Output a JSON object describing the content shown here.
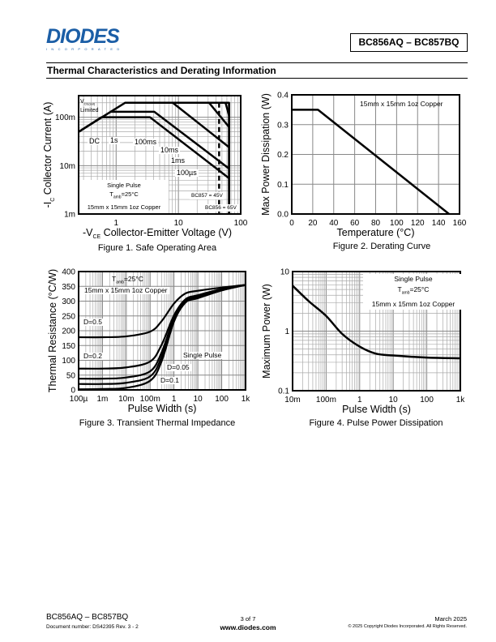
{
  "header": {
    "logo_text": "DIODES",
    "logo_sub": "INCORPORATED",
    "part_number": "BC856AQ – BC857BQ",
    "brand_color": "#1b5ea6"
  },
  "section_title": "Thermal Characteristics and Derating Information",
  "chart_data": [
    {
      "type": "line",
      "title": "Figure 1. Safe Operating Area",
      "xlabel_prefix": "-V",
      "xlabel_sub": "CE",
      "xlabel": "Collector-Emitter Voltage (V)",
      "ylabel_prefix": "-I",
      "ylabel_sub": "C",
      "ylabel": "Collector Current (A)",
      "xscale": "log",
      "yscale": "log",
      "xlim": [
        0.25,
        100
      ],
      "ylim": [
        0.001,
        0.28
      ],
      "grid": true,
      "xticks": [
        {
          "v": 1,
          "label": "1"
        },
        {
          "v": 10,
          "label": "10"
        },
        {
          "v": 100,
          "label": "100"
        }
      ],
      "yticks": [
        {
          "v": 0.001,
          "label": "1m"
        },
        {
          "v": 0.01,
          "label": "10m"
        },
        {
          "v": 0.1,
          "label": "100m"
        }
      ],
      "series": [
        {
          "name": "DC",
          "points": [
            [
              0.25,
              0.05
            ],
            [
              0.58,
              0.1
            ],
            [
              3.5,
              0.1
            ],
            [
              65,
              0.0055
            ]
          ]
        },
        {
          "name": "1s",
          "points": [
            [
              0.79,
              0.13
            ],
            [
              4.1,
              0.13
            ],
            [
              65,
              0.0087
            ]
          ]
        },
        {
          "name": "100ms",
          "points": [
            [
              1.4,
              0.2
            ],
            [
              8.1,
              0.2
            ],
            [
              65,
              0.024
            ]
          ]
        },
        {
          "name": "10ms",
          "points": [
            [
              31,
              0.2
            ],
            [
              65,
              0.063
            ]
          ]
        },
        {
          "name": "1ms",
          "points": [
            [
              57,
              0.2
            ],
            [
              65,
              0.108
            ]
          ]
        },
        {
          "name": "100µs",
          "points": [
            [
              0.25,
              0.05
            ],
            [
              1.4,
              0.2
            ],
            [
              65,
              0.2
            ],
            [
              65,
              0.001
            ]
          ]
        }
      ],
      "limits": [
        {
          "label": "BC857 = 45V",
          "v": 45,
          "style": "dashed"
        },
        {
          "label": "BC856 = 65V",
          "v": 65,
          "style": "solid"
        }
      ],
      "annotations": {
        "vce_sat": "V",
        "vce_sat_sub": "CE(sat)",
        "limited": "Limited",
        "dc": "DC",
        "s1": "1s",
        "ms100": "100ms",
        "ms10": "10ms",
        "ms1": "1ms",
        "us100": "100µs",
        "single_pulse": "Single Pulse",
        "tamb": "T",
        "tamb_sub": "amb",
        "tamb_val": "=25°C",
        "copper": "15mm x 15mm 1oz Copper"
      }
    },
    {
      "type": "line",
      "title": "Figure 2. Derating Curve",
      "xlabel": "Temperature (°C)",
      "ylabel": "Max Power Dissipation (W)",
      "xscale": "linear",
      "yscale": "linear",
      "xlim": [
        0,
        160
      ],
      "ylim": [
        0,
        0.4
      ],
      "grid": true,
      "xticks": [
        {
          "v": 0,
          "label": "0"
        },
        {
          "v": 20,
          "label": "20"
        },
        {
          "v": 40,
          "label": "40"
        },
        {
          "v": 60,
          "label": "60"
        },
        {
          "v": 80,
          "label": "80"
        },
        {
          "v": 100,
          "label": "100"
        },
        {
          "v": 120,
          "label": "120"
        },
        {
          "v": 140,
          "label": "140"
        },
        {
          "v": 160,
          "label": "160"
        }
      ],
      "yticks": [
        {
          "v": 0,
          "label": "0.0"
        },
        {
          "v": 0.1,
          "label": "0.1"
        },
        {
          "v": 0.2,
          "label": "0.2"
        },
        {
          "v": 0.3,
          "label": "0.3"
        },
        {
          "v": 0.4,
          "label": "0.4"
        }
      ],
      "series": [
        {
          "name": "Pd",
          "points": [
            [
              0,
              0.35
            ],
            [
              25,
              0.35
            ],
            [
              150,
              0
            ]
          ]
        }
      ],
      "annotations": {
        "copper": "15mm x 15mm 1oz Copper"
      }
    },
    {
      "type": "line",
      "title": "Figure 3. Transient Thermal Impedance",
      "xlabel": "Pulse Width (s)",
      "ylabel": "Thermal Resistance (°C/W)",
      "xscale": "log",
      "yscale": "linear",
      "xlim": [
        0.0001,
        1000
      ],
      "ylim": [
        0,
        400
      ],
      "grid": true,
      "xticks": [
        {
          "v": 0.0001,
          "label": "100µ"
        },
        {
          "v": 0.001,
          "label": "1m"
        },
        {
          "v": 0.01,
          "label": "10m"
        },
        {
          "v": 0.1,
          "label": "100m"
        },
        {
          "v": 1,
          "label": "1"
        },
        {
          "v": 10,
          "label": "10"
        },
        {
          "v": 100,
          "label": "100"
        },
        {
          "v": 1000,
          "label": "1k"
        }
      ],
      "yticks": [
        {
          "v": 0,
          "label": "0"
        },
        {
          "v": 50,
          "label": "50"
        },
        {
          "v": 100,
          "label": "100"
        },
        {
          "v": 150,
          "label": "150"
        },
        {
          "v": 200,
          "label": "200"
        },
        {
          "v": 250,
          "label": "250"
        },
        {
          "v": 300,
          "label": "300"
        },
        {
          "v": 350,
          "label": "350"
        },
        {
          "v": 400,
          "label": "400"
        }
      ],
      "x": [
        0.0001,
        0.001,
        0.01,
        0.1,
        0.3,
        1,
        3,
        10,
        100,
        1000
      ],
      "series": [
        {
          "name": "D=0.5",
          "values": [
            178,
            178,
            181,
            197,
            232,
            292,
            326,
            335,
            346,
            355
          ]
        },
        {
          "name": "D=0.2",
          "values": [
            72,
            72,
            76,
            96,
            152,
            252,
            306,
            320,
            341,
            355
          ]
        },
        {
          "name": "D=0.1",
          "values": [
            38,
            38,
            42,
            63,
            126,
            242,
            301,
            315,
            338,
            355
          ]
        },
        {
          "name": "D=0.05",
          "values": [
            20,
            20,
            24,
            46,
            111,
            237,
            298,
            312,
            337,
            355
          ]
        },
        {
          "name": "Single Pulse",
          "values": [
            2,
            3,
            7,
            31,
            96,
            231,
            295,
            310,
            336,
            355
          ]
        }
      ],
      "annotations": {
        "tamb": "T",
        "tamb_sub": "amb",
        "tamb_val": "=25°C",
        "copper": "15mm x 15mm 1oz Copper",
        "d05": "D=0.5",
        "d02": "D=0.2",
        "single": "Single Pulse",
        "d005": "D=0.05",
        "d01": "D=0.1"
      }
    },
    {
      "type": "line",
      "title": "Figure 4. Pulse Power Dissipation",
      "xlabel": "Pulse Width (s)",
      "ylabel": "Maximum Power (W)",
      "xscale": "log",
      "yscale": "log",
      "xlim": [
        0.01,
        1000
      ],
      "ylim": [
        0.1,
        10
      ],
      "grid": true,
      "xticks": [
        {
          "v": 0.01,
          "label": "10m"
        },
        {
          "v": 0.1,
          "label": "100m"
        },
        {
          "v": 1,
          "label": "1"
        },
        {
          "v": 10,
          "label": "10"
        },
        {
          "v": 100,
          "label": "100"
        },
        {
          "v": 1000,
          "label": "1k"
        }
      ],
      "yticks": [
        {
          "v": 0.1,
          "label": "0.1"
        },
        {
          "v": 1,
          "label": "1"
        },
        {
          "v": 10,
          "label": "10"
        }
      ],
      "x": [
        0.01,
        0.03,
        0.1,
        0.3,
        1,
        3,
        10,
        100,
        1000
      ],
      "series": [
        {
          "name": "Pmax",
          "values": [
            5.8,
            3.2,
            1.8,
            0.9,
            0.55,
            0.42,
            0.39,
            0.36,
            0.35
          ]
        }
      ],
      "annotations": {
        "single_pulse": "Single Pulse",
        "tamb": "T",
        "tamb_sub": "amb",
        "tamb_val": "=25°C",
        "copper": "15mm x 15mm 1oz Copper"
      }
    }
  ],
  "footer": {
    "part": "BC856AQ – BC857BQ",
    "doc": "Document number: DS42395  Rev. 3 - 2",
    "page": "3 of 7",
    "url": "www.diodes.com",
    "date": "March 2025",
    "copyright": "© 2025 Copyright Diodes Incorporated. All Rights Reserved."
  }
}
